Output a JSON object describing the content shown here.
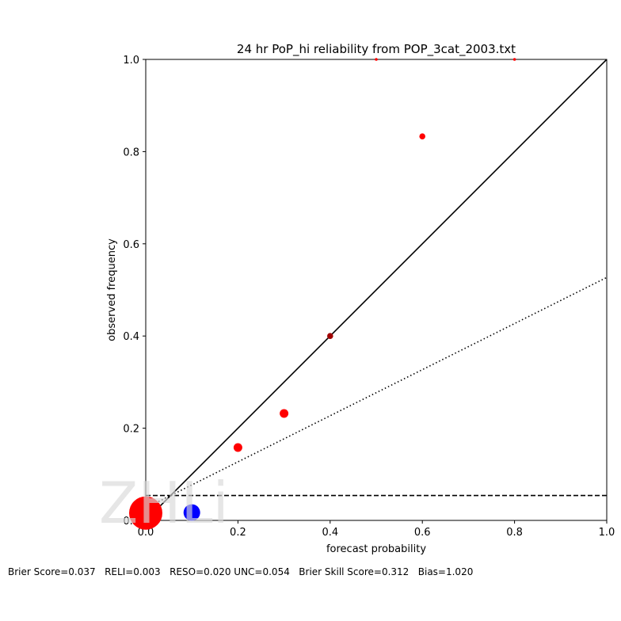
{
  "chart_data": {
    "type": "scatter",
    "title": "24 hr PoP_hi reliability from POP_3cat_2003.txt",
    "xlabel": "forecast probability",
    "ylabel": "observed frequency",
    "xlim": [
      0.0,
      1.0
    ],
    "ylim": [
      0.0,
      1.0
    ],
    "xticks": [
      "0.0",
      "0.2",
      "0.4",
      "0.6",
      "0.8",
      "1.0"
    ],
    "yticks": [
      "0.0",
      "0.2",
      "0.4",
      "0.6",
      "0.8",
      "1.0"
    ],
    "points": [
      {
        "x": 0.0,
        "y": 0.016,
        "size": "largest",
        "color": "#ff0000"
      },
      {
        "x": 0.1,
        "y": 0.017,
        "size": "large",
        "color": "#0000ff"
      },
      {
        "x": 0.2,
        "y": 0.158,
        "size": "small",
        "color": "#ff0000"
      },
      {
        "x": 0.3,
        "y": 0.232,
        "size": "small",
        "color": "#ff0000"
      },
      {
        "x": 0.4,
        "y": 0.4,
        "size": "tiny",
        "color": "#a00000"
      },
      {
        "x": 0.5,
        "y": 1.0,
        "size": "tiniest",
        "color": "#ff0000"
      },
      {
        "x": 0.6,
        "y": 0.833,
        "size": "tiny",
        "color": "#ff0000"
      },
      {
        "x": 0.8,
        "y": 1.0,
        "size": "tiniest",
        "color": "#ff0000"
      }
    ],
    "reference_lines": {
      "perfect_reliability": {
        "from": [
          0.0,
          0.0
        ],
        "to": [
          1.0,
          1.0
        ],
        "style": "solid"
      },
      "no_skill": {
        "from": [
          0.0,
          0.027
        ],
        "to": [
          1.0,
          0.527
        ],
        "style": "dotted"
      },
      "climatology": {
        "y": 0.054,
        "style": "dashed"
      }
    },
    "grid": false,
    "legend": "none"
  },
  "watermark": "ZHLi",
  "footer": {
    "text": "Brier Score=0.037   RELI=0.003   RESO=0.020 UNC=0.054   Brier Skill Score=0.312   Bias=1.020"
  },
  "colors": {
    "forecast_points": "#ff0000",
    "climatology_point": "#0000ff"
  }
}
